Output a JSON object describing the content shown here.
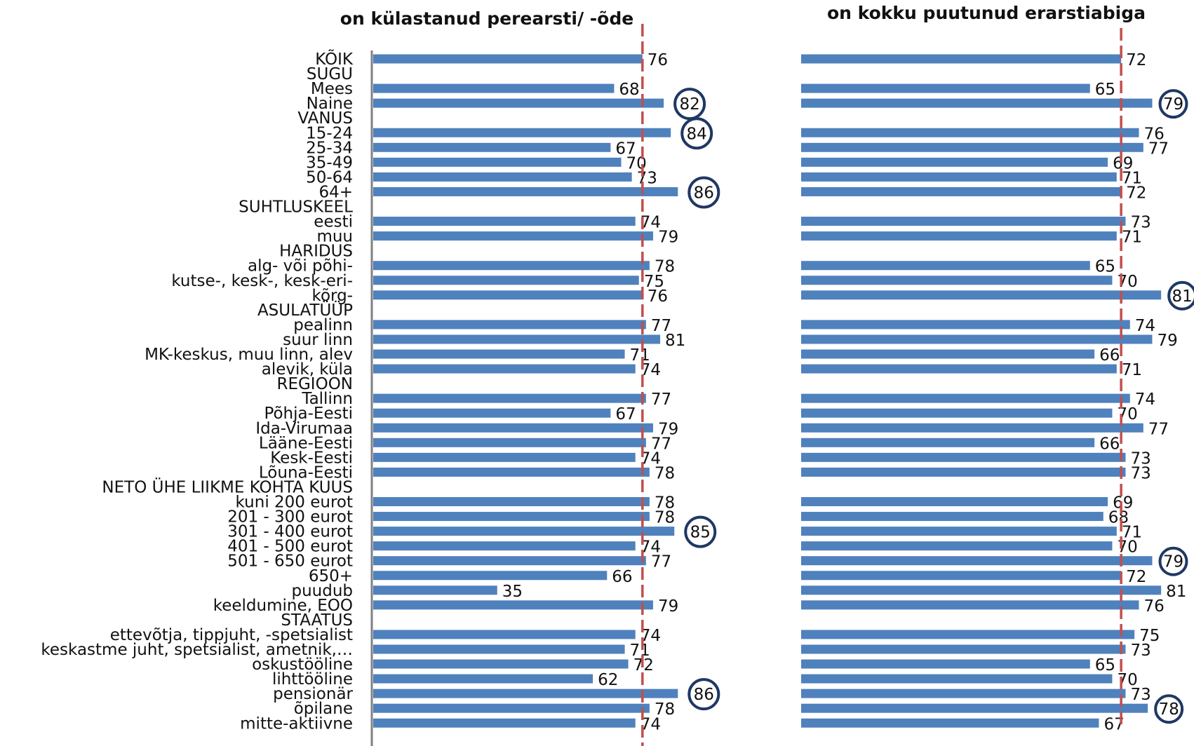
{
  "chart_data": {
    "type": "bar",
    "orientation": "horizontal",
    "categories": [
      "KÕIK",
      "SUGU",
      "Mees",
      "Naine",
      "VANUS",
      "15-24",
      "25-34",
      "35-49",
      "50-64",
      "64+",
      "SUHTLUSKEEL",
      "eesti",
      "muu",
      "HARIDUS",
      "alg- või põhi-",
      "kutse-, kesk-, kesk-eri-",
      "kõrg-",
      "ASULATÜÜP",
      "pealinn",
      "suur linn",
      "MK-keskus, muu linn, alev",
      "alevik, küla",
      "REGIOON",
      "Tallinn",
      "Põhja-Eesti",
      "Ida-Virumaa",
      "Lääne-Eesti",
      "Kesk-Eesti",
      "Lõuna-Eesti",
      "NETO ÜHE LIIKME KOHTA KUUS",
      "kuni 200 eurot",
      "201 - 300 eurot",
      "301 - 400 eurot",
      "401 - 500 eurot",
      "501 - 650 eurot",
      "650+",
      "puudub",
      "keeldumine, EOO",
      "STAATUS",
      "ettevõtja, tippjuht, -spetsialist",
      "keskastme juht, spetsialist, ametnik,…",
      "oskustööline",
      "lihttööline",
      "pensionär",
      "õpilane",
      "mitte-aktiivne"
    ],
    "series": [
      {
        "name": "on külastanud perearsti/ -õde",
        "values": [
          76,
          null,
          68,
          82,
          null,
          84,
          67,
          70,
          73,
          86,
          null,
          74,
          79,
          null,
          78,
          75,
          76,
          null,
          77,
          81,
          71,
          74,
          null,
          77,
          67,
          79,
          77,
          74,
          78,
          null,
          78,
          78,
          85,
          74,
          77,
          66,
          35,
          79,
          null,
          74,
          71,
          72,
          62,
          86,
          78,
          74
        ],
        "reference": 76,
        "circled": [
          3,
          5,
          9,
          32,
          43
        ],
        "bar_color": "#4F81BD",
        "circle_color": "#1F3864"
      },
      {
        "name": "on kokku puutunud erarstiabiga",
        "values": [
          72,
          null,
          65,
          79,
          null,
          76,
          77,
          69,
          71,
          72,
          null,
          73,
          71,
          null,
          65,
          70,
          81,
          null,
          74,
          79,
          66,
          71,
          null,
          74,
          70,
          77,
          66,
          73,
          73,
          null,
          69,
          68,
          71,
          70,
          79,
          72,
          81,
          76,
          null,
          75,
          73,
          65,
          70,
          73,
          78,
          67
        ],
        "reference": 72,
        "circled": [
          3,
          16,
          34,
          44
        ],
        "bar_color": "#4F81BD",
        "circle_color": "#1F3864"
      }
    ],
    "reference_line_color": "#C0504D",
    "xlim": [
      0,
      100
    ]
  }
}
